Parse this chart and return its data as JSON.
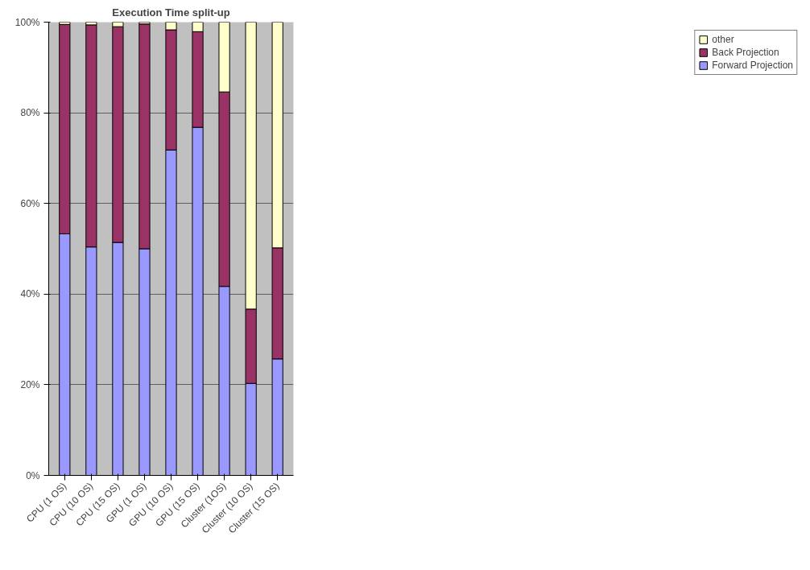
{
  "chart_data": {
    "type": "bar",
    "title": "Execution Time split-up",
    "stacked": true,
    "categories": [
      "CPU (1 OS)",
      "CPU (10 OS)",
      "CPU (15 OS)",
      "GPU (1 OS)",
      "GPU (10 OS)",
      "GPU (15 OS)",
      "Cluster (1OS)",
      "Cluster (10 OS)",
      "Cluster (15 OS)"
    ],
    "series": [
      {
        "name": "Forward Projection",
        "color": "#9999ff",
        "values": [
          53.3,
          50.4,
          51.4,
          50,
          71.8,
          76.8,
          41.7,
          20.3,
          25.7
        ]
      },
      {
        "name": "Back Projection",
        "color": "#993366",
        "values": [
          46.2,
          49,
          47.6,
          49.6,
          26.5,
          21.1,
          42.9,
          16.4,
          24.5
        ]
      },
      {
        "name": "other",
        "color": "#ffffcc",
        "values": [
          0.5,
          0.6,
          1,
          0.4,
          1.7,
          2.1,
          15.4,
          63.3,
          49.8
        ]
      }
    ],
    "ylim": [
      0,
      100
    ],
    "yticks": [
      {
        "value": 0,
        "label": "0%"
      },
      {
        "value": 20,
        "label": "20%"
      },
      {
        "value": 40,
        "label": "40%"
      },
      {
        "value": 60,
        "label": "60%"
      },
      {
        "value": 80,
        "label": "80%"
      },
      {
        "value": 100,
        "label": "100%"
      }
    ],
    "grid": "y",
    "legend": "right"
  }
}
